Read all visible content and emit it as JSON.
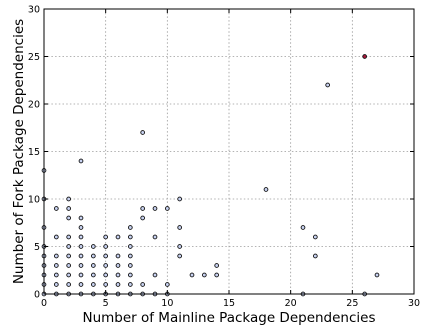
{
  "chart_data": {
    "type": "scatter",
    "title": "",
    "xlabel": "Number of Mainline Package Dependencies",
    "ylabel": "Number of Fork Package Dependencies",
    "xlim": [
      0,
      30
    ],
    "ylim": [
      0,
      30
    ],
    "xticks": [
      "0",
      "5",
      "10",
      "15",
      "20",
      "25",
      "30"
    ],
    "yticks": [
      "0",
      "5",
      "10",
      "15",
      "20",
      "25",
      "30"
    ],
    "grid": true,
    "legend": "none",
    "marker_fill": "#c9d3f2",
    "highlight_fill": "#a8183a",
    "points": [
      {
        "x": 0,
        "y": 0
      },
      {
        "x": 0,
        "y": 1
      },
      {
        "x": 0,
        "y": 2
      },
      {
        "x": 0,
        "y": 3
      },
      {
        "x": 0,
        "y": 4
      },
      {
        "x": 0,
        "y": 5
      },
      {
        "x": 0,
        "y": 7
      },
      {
        "x": 0,
        "y": 10
      },
      {
        "x": 0,
        "y": 13
      },
      {
        "x": 1,
        "y": 0
      },
      {
        "x": 1,
        "y": 1
      },
      {
        "x": 1,
        "y": 2
      },
      {
        "x": 1,
        "y": 3
      },
      {
        "x": 1,
        "y": 4
      },
      {
        "x": 1,
        "y": 6
      },
      {
        "x": 1,
        "y": 9
      },
      {
        "x": 2,
        "y": 0
      },
      {
        "x": 2,
        "y": 1
      },
      {
        "x": 2,
        "y": 2
      },
      {
        "x": 2,
        "y": 3
      },
      {
        "x": 2,
        "y": 4
      },
      {
        "x": 2,
        "y": 5
      },
      {
        "x": 2,
        "y": 6
      },
      {
        "x": 2,
        "y": 8
      },
      {
        "x": 2,
        "y": 9
      },
      {
        "x": 2,
        "y": 10
      },
      {
        "x": 3,
        "y": 0
      },
      {
        "x": 3,
        "y": 1
      },
      {
        "x": 3,
        "y": 2
      },
      {
        "x": 3,
        "y": 3
      },
      {
        "x": 3,
        "y": 4
      },
      {
        "x": 3,
        "y": 5
      },
      {
        "x": 3,
        "y": 6
      },
      {
        "x": 3,
        "y": 7
      },
      {
        "x": 3,
        "y": 8
      },
      {
        "x": 3,
        "y": 14
      },
      {
        "x": 4,
        "y": 0
      },
      {
        "x": 4,
        "y": 1
      },
      {
        "x": 4,
        "y": 2
      },
      {
        "x": 4,
        "y": 3
      },
      {
        "x": 4,
        "y": 4
      },
      {
        "x": 4,
        "y": 5
      },
      {
        "x": 5,
        "y": 0
      },
      {
        "x": 5,
        "y": 1
      },
      {
        "x": 5,
        "y": 2
      },
      {
        "x": 5,
        "y": 3
      },
      {
        "x": 5,
        "y": 4
      },
      {
        "x": 5,
        "y": 5
      },
      {
        "x": 5,
        "y": 6
      },
      {
        "x": 6,
        "y": 0
      },
      {
        "x": 6,
        "y": 1
      },
      {
        "x": 6,
        "y": 2
      },
      {
        "x": 6,
        "y": 3
      },
      {
        "x": 6,
        "y": 4
      },
      {
        "x": 6,
        "y": 6
      },
      {
        "x": 7,
        "y": 0
      },
      {
        "x": 7,
        "y": 1
      },
      {
        "x": 7,
        "y": 2
      },
      {
        "x": 7,
        "y": 3
      },
      {
        "x": 7,
        "y": 4
      },
      {
        "x": 7,
        "y": 5
      },
      {
        "x": 7,
        "y": 6
      },
      {
        "x": 7,
        "y": 7
      },
      {
        "x": 8,
        "y": 0
      },
      {
        "x": 8,
        "y": 1
      },
      {
        "x": 8,
        "y": 8
      },
      {
        "x": 8,
        "y": 9
      },
      {
        "x": 8,
        "y": 17
      },
      {
        "x": 9,
        "y": 0
      },
      {
        "x": 9,
        "y": 2
      },
      {
        "x": 9,
        "y": 6
      },
      {
        "x": 9,
        "y": 9
      },
      {
        "x": 10,
        "y": 0
      },
      {
        "x": 10,
        "y": 1
      },
      {
        "x": 10,
        "y": 9
      },
      {
        "x": 11,
        "y": 4
      },
      {
        "x": 11,
        "y": 5
      },
      {
        "x": 11,
        "y": 7
      },
      {
        "x": 11,
        "y": 10
      },
      {
        "x": 12,
        "y": 2
      },
      {
        "x": 13,
        "y": 2
      },
      {
        "x": 14,
        "y": 2
      },
      {
        "x": 14,
        "y": 3
      },
      {
        "x": 18,
        "y": 11
      },
      {
        "x": 21,
        "y": 0
      },
      {
        "x": 21,
        "y": 7
      },
      {
        "x": 22,
        "y": 4
      },
      {
        "x": 22,
        "y": 6
      },
      {
        "x": 23,
        "y": 22
      },
      {
        "x": 26,
        "y": 0
      },
      {
        "x": 26,
        "y": 25,
        "highlight": true
      },
      {
        "x": 27,
        "y": 2
      }
    ]
  }
}
